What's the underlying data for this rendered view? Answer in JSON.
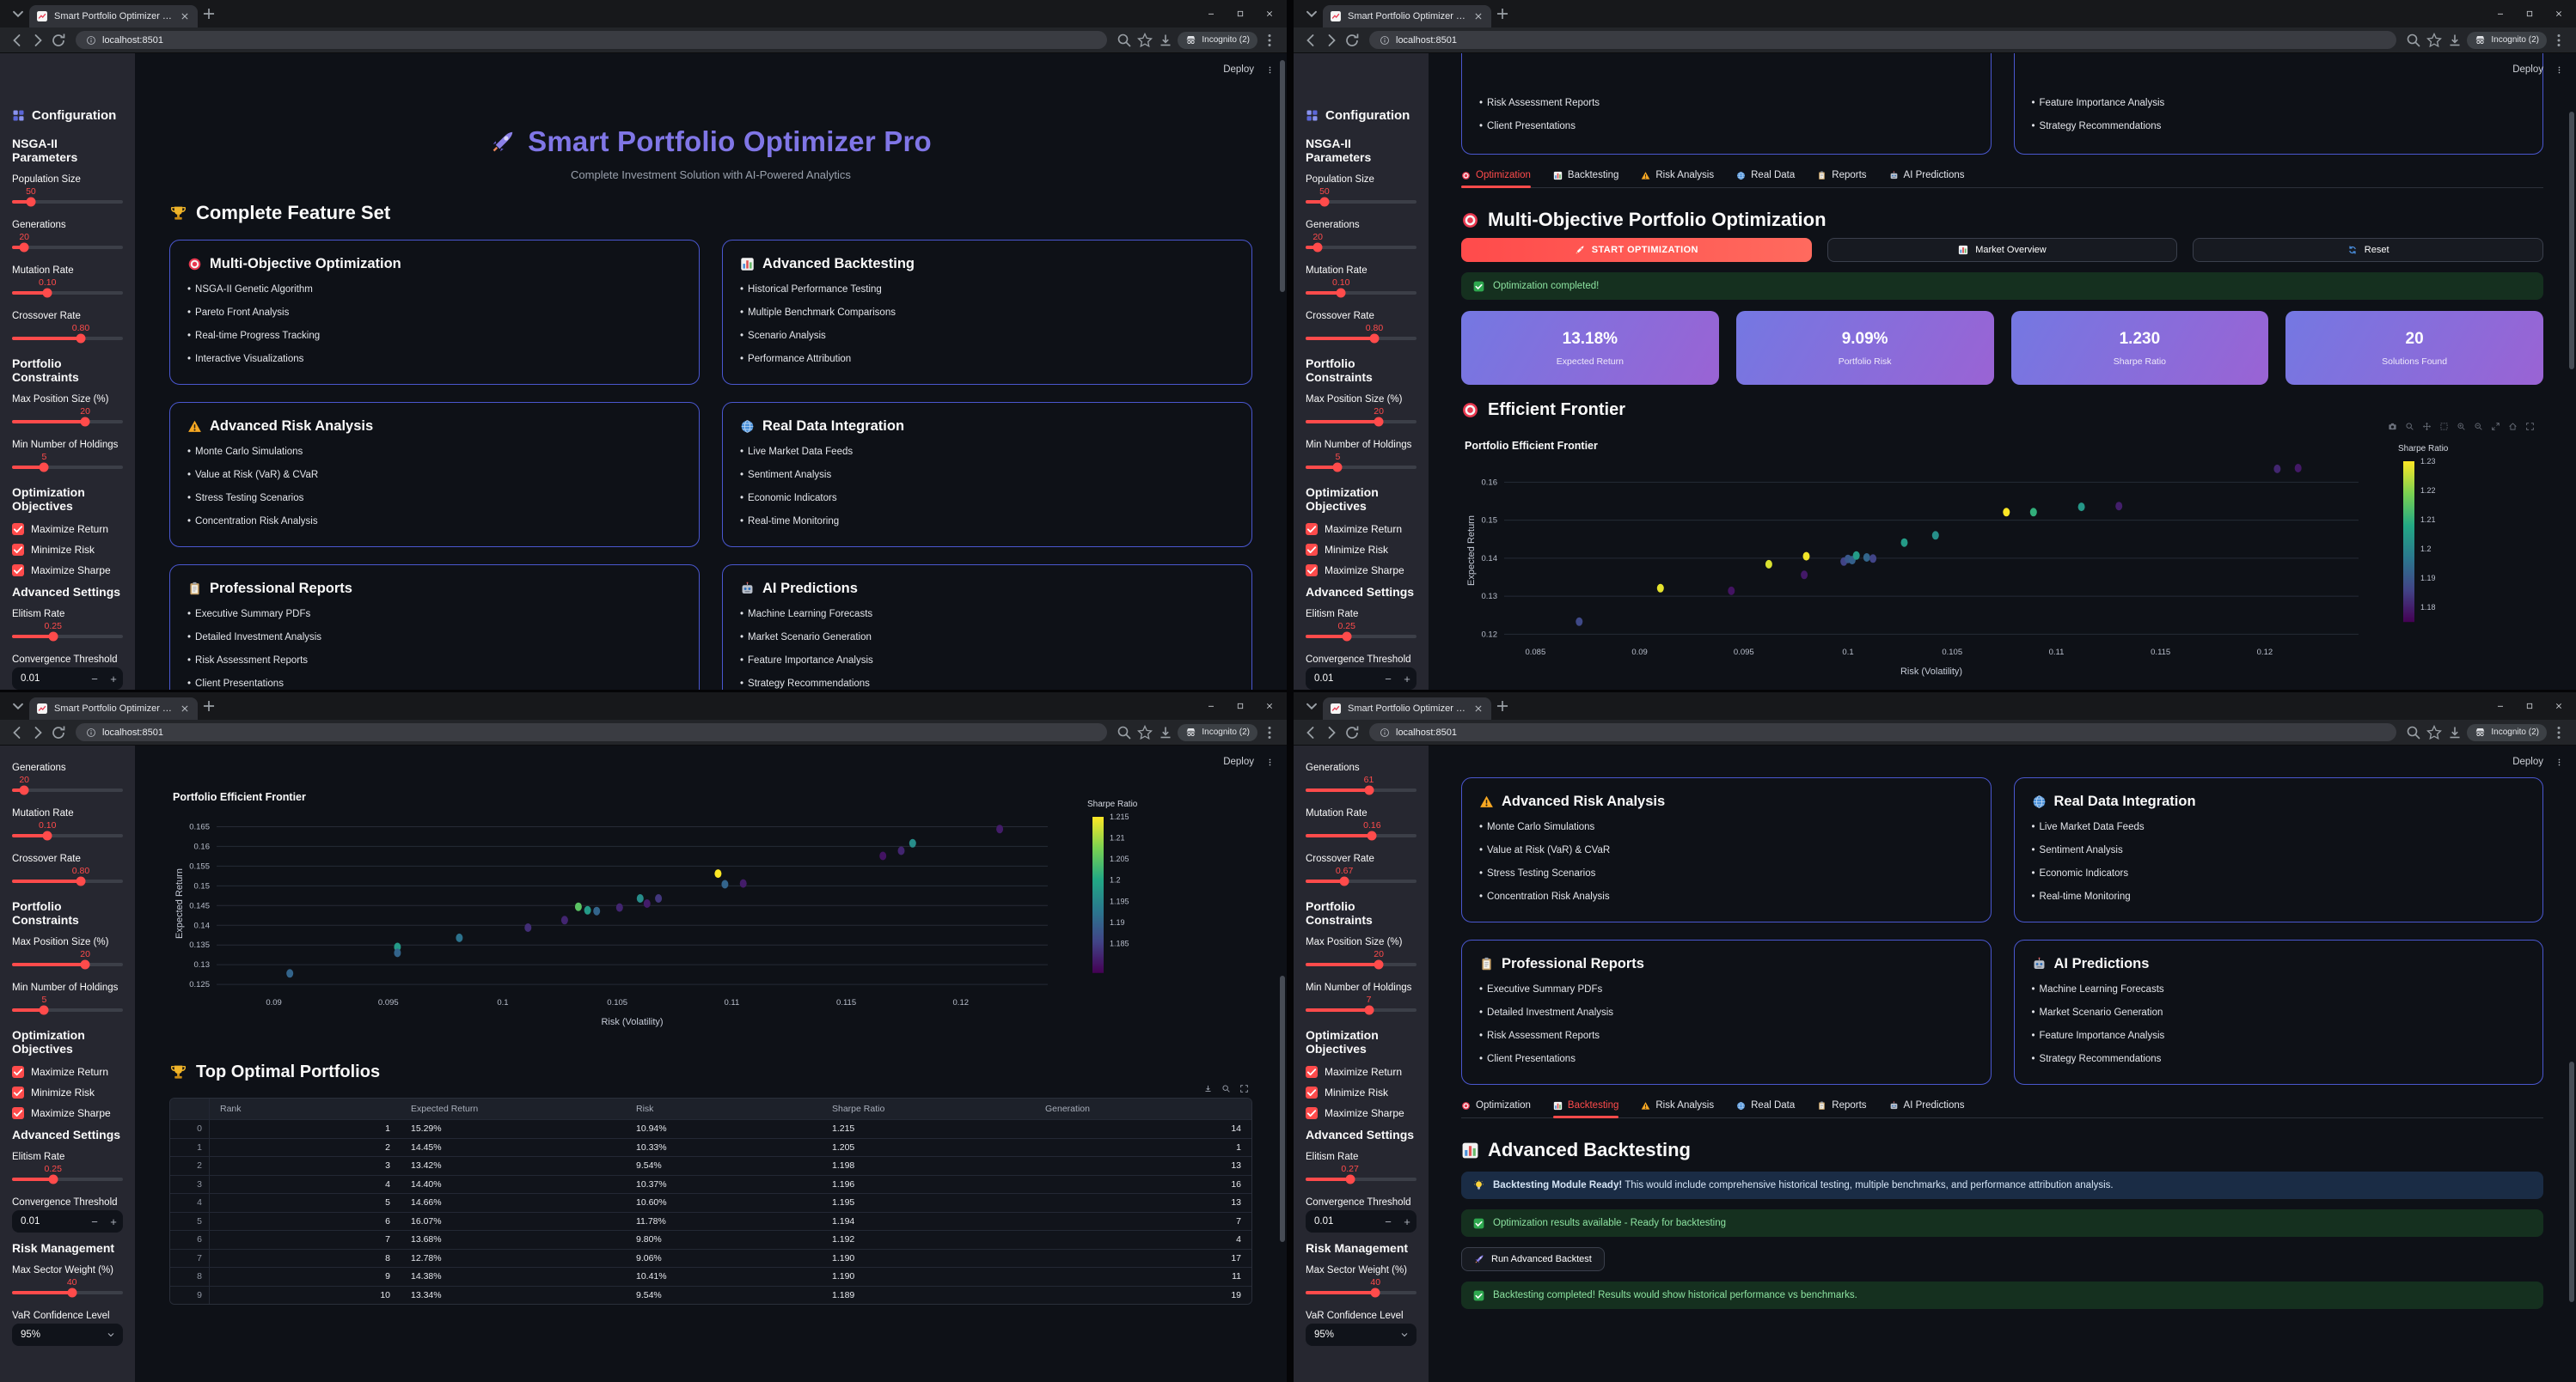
{
  "browser": {
    "tab_title": "Smart Portfolio Optimizer Pro",
    "url": "localhost:8501",
    "incognito": "Incognito (2)"
  },
  "app": {
    "deploy": "Deploy",
    "title": "Smart Portfolio Optimizer Pro",
    "title_icon": "rocket-icon",
    "subtitle": "Complete Investment Solution with AI-Powered Analytics"
  },
  "sidebar": {
    "title": "Configuration",
    "title_icon": "grid-icon",
    "sections": {
      "nsga": "NSGA-II Parameters",
      "constraints": "Portfolio Constraints",
      "objectives": "Optimization Objectives",
      "advanced": "Advanced Settings",
      "risk": "Risk Management"
    },
    "labels": {
      "population": "Population Size",
      "generations": "Generations",
      "mutation": "Mutation Rate",
      "crossover": "Crossover Rate",
      "max_position": "Max Position Size (%)",
      "min_holdings": "Min Number of Holdings",
      "elitism": "Elitism Rate",
      "convergence": "Convergence Threshold",
      "max_sector": "Max Sector Weight (%)",
      "var_conf": "VaR Confidence Level"
    },
    "objectives": [
      "Maximize Return",
      "Minimize Risk",
      "Maximize Sharpe"
    ],
    "values": {
      "top": {
        "population": "50",
        "generations": "20",
        "mutation": "0.10",
        "crossover": "0.80",
        "max_position": "20",
        "min_holdings": "5",
        "elitism": "0.25",
        "convergence": "0.01"
      },
      "bottom_left": {
        "generations": "20",
        "mutation": "0.10",
        "crossover": "0.80",
        "max_position": "20",
        "min_holdings": "5",
        "elitism": "0.25",
        "convergence": "0.01",
        "max_sector": "40",
        "var_conf": "95%"
      },
      "bottom_right": {
        "generations": "61",
        "mutation": "0.16",
        "crossover": "0.67",
        "max_position": "20",
        "min_holdings": "7",
        "elitism": "0.27",
        "convergence": "0.01",
        "max_sector": "40",
        "var_conf": "95%"
      }
    }
  },
  "features": {
    "heading": "Complete Feature Set",
    "heading_icon": "trophy-icon",
    "cards": [
      {
        "icon": "target-icon",
        "title": "Multi-Objective Optimization",
        "items": [
          "NSGA-II Genetic Algorithm",
          "Pareto Front Analysis",
          "Real-time Progress Tracking",
          "Interactive Visualizations"
        ]
      },
      {
        "icon": "bar-chart-icon",
        "title": "Advanced Backtesting",
        "items": [
          "Historical Performance Testing",
          "Multiple Benchmark Comparisons",
          "Scenario Analysis",
          "Performance Attribution"
        ]
      },
      {
        "icon": "warning-icon",
        "title": "Advanced Risk Analysis",
        "items": [
          "Monte Carlo Simulations",
          "Value at Risk (VaR) & CVaR",
          "Stress Testing Scenarios",
          "Concentration Risk Analysis"
        ]
      },
      {
        "icon": "globe-icon",
        "title": "Real Data Integration",
        "items": [
          "Live Market Data Feeds",
          "Sentiment Analysis",
          "Economic Indicators",
          "Real-time Monitoring"
        ]
      },
      {
        "icon": "clipboard-icon",
        "title": "Professional Reports",
        "items": [
          "Executive Summary PDFs",
          "Detailed Investment Analysis",
          "Risk Assessment Reports",
          "Client Presentations"
        ]
      },
      {
        "icon": "robot-icon",
        "title": "AI Predictions",
        "items": [
          "Machine Learning Forecasts",
          "Market Scenario Generation",
          "Feature Importance Analysis",
          "Strategy Recommendations"
        ]
      }
    ]
  },
  "tabs": [
    {
      "icon": "target-icon",
      "label": "Optimization"
    },
    {
      "icon": "bar-chart-icon",
      "label": "Backtesting"
    },
    {
      "icon": "warning-icon",
      "label": "Risk Analysis"
    },
    {
      "icon": "globe-icon",
      "label": "Real Data"
    },
    {
      "icon": "clipboard-icon",
      "label": "Reports"
    },
    {
      "icon": "robot-icon",
      "label": "AI Predictions"
    }
  ],
  "optimization": {
    "heading": "Multi-Objective Portfolio Optimization",
    "start_button": "START OPTIMIZATION",
    "market_button": "Market Overview",
    "reset_button": "Reset",
    "success": "Optimization completed!",
    "metrics": [
      {
        "value": "13.18%",
        "label": "Expected Return"
      },
      {
        "value": "9.09%",
        "label": "Portfolio Risk"
      },
      {
        "value": "1.230",
        "label": "Sharpe Ratio"
      },
      {
        "value": "20",
        "label": "Solutions Found"
      }
    ],
    "frontier_heading": "Efficient Frontier"
  },
  "backtesting": {
    "heading": "Advanced Backtesting",
    "info_bold": "Backtesting Module Ready!",
    "info_rest": "This would include comprehensive historical testing, multiple benchmarks, and performance attribution analysis.",
    "success1": "Optimization results available - Ready for backtesting",
    "button": "Run Advanced Backtest",
    "success2": "Backtesting completed! Results would show historical performance vs benchmarks."
  },
  "table": {
    "heading": "Top Optimal Portfolios",
    "heading_icon": "trophy-icon",
    "columns": [
      "",
      "Rank",
      "Expected Return",
      "Risk",
      "Sharpe Ratio",
      "Generation"
    ],
    "rows": [
      [
        "0",
        "1",
        "15.29%",
        "10.94%",
        "1.215",
        "14"
      ],
      [
        "1",
        "2",
        "14.45%",
        "10.33%",
        "1.205",
        "1"
      ],
      [
        "2",
        "3",
        "13.42%",
        "9.54%",
        "1.198",
        "13"
      ],
      [
        "3",
        "4",
        "14.40%",
        "10.37%",
        "1.196",
        "16"
      ],
      [
        "4",
        "5",
        "14.66%",
        "10.60%",
        "1.195",
        "13"
      ],
      [
        "5",
        "6",
        "16.07%",
        "11.78%",
        "1.194",
        "7"
      ],
      [
        "6",
        "7",
        "13.68%",
        "9.80%",
        "1.192",
        "4"
      ],
      [
        "7",
        "8",
        "12.78%",
        "9.06%",
        "1.190",
        "17"
      ],
      [
        "8",
        "9",
        "14.38%",
        "10.41%",
        "1.190",
        "11"
      ],
      [
        "9",
        "10",
        "13.34%",
        "9.54%",
        "1.189",
        "19"
      ]
    ]
  },
  "chart_data": [
    {
      "type": "scatter",
      "title": "Portfolio Efficient Frontier",
      "xlabel": "Risk (Volatility)",
      "ylabel": "Expected Return",
      "colorbar_title": "Sharpe Ratio",
      "grid": "horizontal",
      "legend_position": "right-colorbar",
      "x_range": [
        0.0835,
        0.1245
      ],
      "y_range": [
        0.1185,
        0.1655
      ],
      "x_ticks": [
        "0.085",
        "0.09",
        "0.095",
        "0.1",
        "0.105",
        "0.11",
        "0.115",
        "0.12"
      ],
      "x_tick_vals": [
        0.085,
        0.09,
        0.095,
        0.1,
        0.105,
        0.11,
        0.115,
        0.12
      ],
      "y_ticks": [
        "0.12",
        "0.13",
        "0.14",
        "0.15",
        "0.16"
      ],
      "y_tick_vals": [
        0.12,
        0.13,
        0.14,
        0.15,
        0.16
      ],
      "color_range": [
        1.175,
        1.23
      ],
      "colorbar_ticks": [
        "1.23",
        "1.22",
        "1.21",
        "1.2",
        "1.19",
        "1.18"
      ],
      "colorbar_tick_vals": [
        1.23,
        1.22,
        1.21,
        1.2,
        1.19,
        1.18
      ],
      "points": [
        [
          0.0871,
          0.1233,
          1.187
        ],
        [
          0.091,
          0.1321,
          1.228
        ],
        [
          0.0944,
          0.1314,
          1.178
        ],
        [
          0.0962,
          0.1384,
          1.227
        ],
        [
          0.098,
          0.1405,
          1.229
        ],
        [
          0.0979,
          0.1356,
          1.179
        ],
        [
          0.0998,
          0.1391,
          1.186
        ],
        [
          0.1,
          0.1398,
          1.19
        ],
        [
          0.1002,
          0.1395,
          1.192
        ],
        [
          0.1004,
          0.1407,
          1.205
        ],
        [
          0.1009,
          0.1402,
          1.193
        ],
        [
          0.1012,
          0.1399,
          1.186
        ],
        [
          0.1027,
          0.1441,
          1.205
        ],
        [
          0.1042,
          0.146,
          1.202
        ],
        [
          0.1076,
          0.1521,
          1.23
        ],
        [
          0.1089,
          0.1521,
          1.21
        ],
        [
          0.1112,
          0.1535,
          1.204
        ],
        [
          0.113,
          0.1537,
          1.18
        ],
        [
          0.1206,
          0.1635,
          1.181
        ],
        [
          0.1216,
          0.1637,
          1.179
        ]
      ]
    },
    {
      "type": "scatter",
      "title": "Portfolio Efficient Frontier",
      "xlabel": "Risk (Volatility)",
      "ylabel": "Expected Return",
      "colorbar_title": "Sharpe Ratio",
      "grid": "horizontal",
      "legend_position": "right-colorbar",
      "x_range": [
        0.0875,
        0.1238
      ],
      "y_range": [
        0.1235,
        0.1675
      ],
      "x_ticks": [
        "0.09",
        "0.095",
        "0.1",
        "0.105",
        "0.11",
        "0.115",
        "0.12"
      ],
      "x_tick_vals": [
        0.09,
        0.095,
        0.1,
        0.105,
        0.11,
        0.115,
        0.12
      ],
      "y_ticks": [
        "0.125",
        "0.13",
        "0.135",
        "0.14",
        "0.145",
        "0.15",
        "0.155",
        "0.16",
        "0.165"
      ],
      "y_tick_vals": [
        0.125,
        0.13,
        0.135,
        0.14,
        0.145,
        0.15,
        0.155,
        0.16,
        0.165
      ],
      "color_range": [
        1.178,
        1.215
      ],
      "colorbar_ticks": [
        "1.215",
        "1.21",
        "1.205",
        "1.2",
        "1.195",
        "1.19",
        "1.185"
      ],
      "colorbar_tick_vals": [
        1.215,
        1.21,
        1.205,
        1.2,
        1.195,
        1.19,
        1.185
      ],
      "points": [
        [
          0.0907,
          0.1278,
          1.19
        ],
        [
          0.0954,
          0.1345,
          1.198
        ],
        [
          0.0954,
          0.133,
          1.19
        ],
        [
          0.0981,
          0.1368,
          1.192
        ],
        [
          0.1011,
          0.1394,
          1.183
        ],
        [
          0.1027,
          0.1413,
          1.182
        ],
        [
          0.1033,
          0.1447,
          1.205
        ],
        [
          0.1037,
          0.1438,
          1.198
        ],
        [
          0.1041,
          0.1436,
          1.19
        ],
        [
          0.1051,
          0.1445,
          1.182
        ],
        [
          0.106,
          0.1468,
          1.196
        ],
        [
          0.1063,
          0.1455,
          1.181
        ],
        [
          0.1068,
          0.1468,
          1.184
        ],
        [
          0.1094,
          0.1531,
          1.215
        ],
        [
          0.1097,
          0.1504,
          1.19
        ],
        [
          0.1105,
          0.1506,
          1.181
        ],
        [
          0.1166,
          0.1576,
          1.18
        ],
        [
          0.1174,
          0.1589,
          1.182
        ],
        [
          0.1179,
          0.1608,
          1.196
        ],
        [
          0.1217,
          0.1644,
          1.181
        ]
      ]
    }
  ]
}
